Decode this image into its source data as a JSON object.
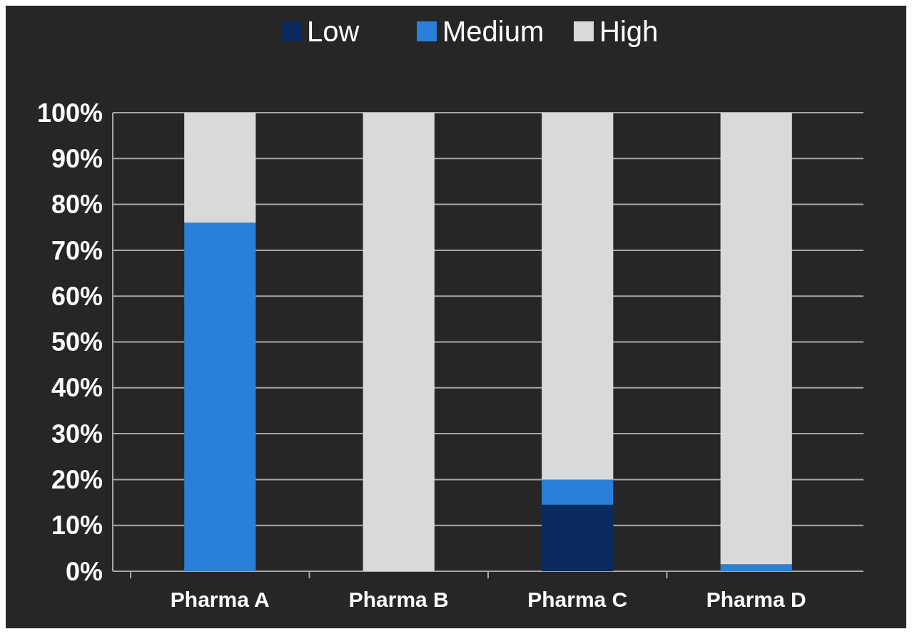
{
  "chart_data": {
    "type": "bar",
    "stacked": true,
    "categories": [
      "Pharma A",
      "Pharma B",
      "Pharma C",
      "Pharma D"
    ],
    "series": [
      {
        "name": "Low",
        "color": "#0b2b5f",
        "values": [
          0,
          0,
          14.5,
          0
        ]
      },
      {
        "name": "Medium",
        "color": "#2a7fd8",
        "values": [
          76,
          0,
          5.5,
          1.5
        ]
      },
      {
        "name": "High",
        "color": "#d9d9d9",
        "values": [
          24,
          100,
          80,
          98.5
        ]
      }
    ],
    "ylim": [
      0,
      100
    ],
    "yticks": [
      {
        "value": 0,
        "label": "0%"
      },
      {
        "value": 10,
        "label": "10%"
      },
      {
        "value": 20,
        "label": "20%"
      },
      {
        "value": 30,
        "label": "30%"
      },
      {
        "value": 40,
        "label": "40%"
      },
      {
        "value": 50,
        "label": "50%"
      },
      {
        "value": 60,
        "label": "60%"
      },
      {
        "value": 70,
        "label": "70%"
      },
      {
        "value": 80,
        "label": "80%"
      },
      {
        "value": 90,
        "label": "90%"
      },
      {
        "value": 100,
        "label": "100%"
      }
    ],
    "grid": "y",
    "legend": "top"
  }
}
